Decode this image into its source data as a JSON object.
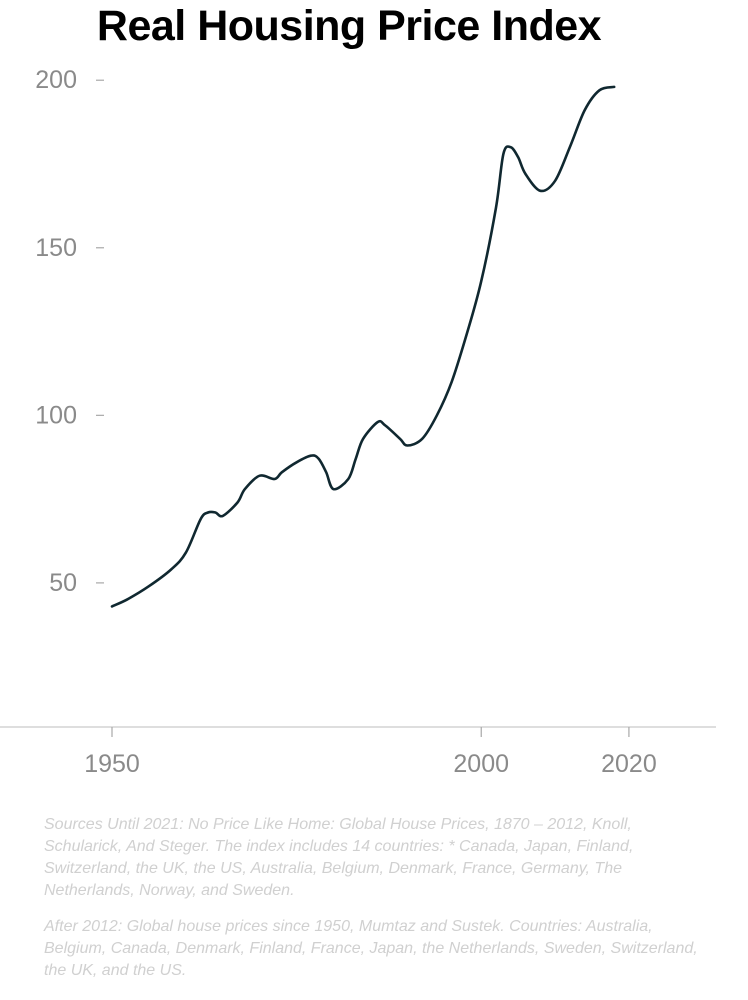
{
  "chart_data": {
    "type": "line",
    "title": "Real Housing Price Index",
    "xlabel": "",
    "ylabel": "",
    "x_ticks": [
      1950,
      2000,
      2020
    ],
    "y_ticks": [
      50,
      100,
      150,
      200
    ],
    "xlim": [
      1950,
      2028
    ],
    "ylim": [
      7,
      212
    ],
    "grid": false,
    "legend": "none",
    "series": [
      {
        "color": "#102830",
        "x": [
          1950,
          1952,
          1955,
          1958,
          1960,
          1962,
          1963,
          1964,
          1965,
          1967,
          1968,
          1970,
          1972,
          1973,
          1975,
          1977,
          1978,
          1979,
          1980,
          1982,
          1983,
          1984,
          1986,
          1987,
          1989,
          1990,
          1992,
          1994,
          1996,
          1998,
          2000,
          2002,
          2003,
          2004,
          2005,
          2006,
          2008,
          2010,
          2012,
          2014,
          2016,
          2018
        ],
        "values": [
          43,
          45,
          49,
          54,
          59,
          69,
          71,
          71,
          70,
          74,
          78,
          82,
          81,
          83,
          86,
          88,
          87,
          83,
          78,
          81,
          87,
          93,
          98,
          97,
          93,
          91,
          93,
          100,
          110,
          124,
          140,
          162,
          178,
          180,
          177,
          172,
          167,
          170,
          180,
          191,
          197,
          198
        ]
      }
    ],
    "notes": [
      "Sources Until 2021: No Price Like Home: Global House Prices, 1870 – 2012, Knoll, Schularick, And Steger. The index includes 14 countries: * Canada, Japan, Finland, Switzerland, the UK, the US, Australia, Belgium, Denmark, France, Germany, The Netherlands, Norway, and Sweden.",
      "After 2012: Global house prices since 1950, Mumtaz and Sustek. Countries: Australia, Belgium, Canada, Denmark, Finland, France, Japan, the Netherlands, Sweden, Switzerland, the UK, and the US."
    ]
  }
}
